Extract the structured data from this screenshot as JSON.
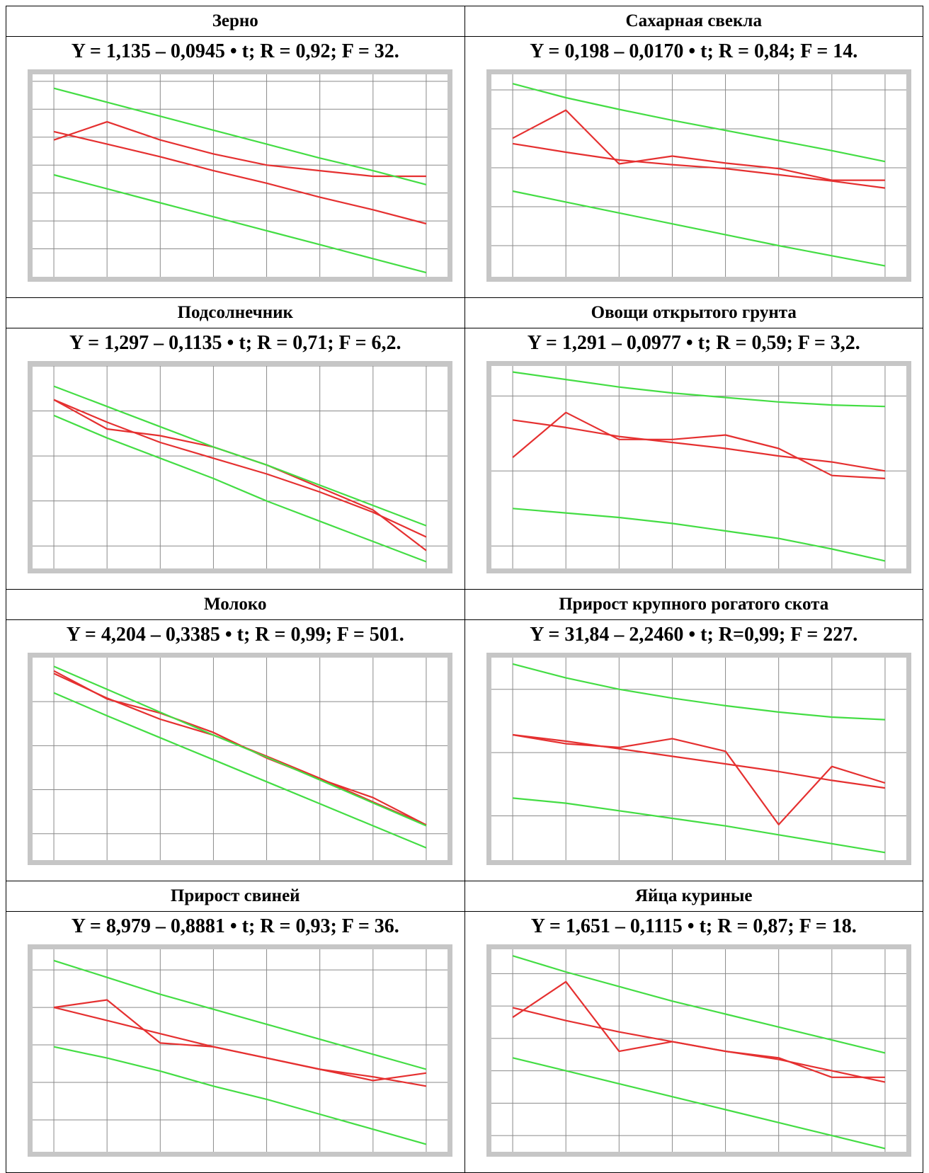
{
  "panels": [
    {
      "title": "Зерно",
      "equation": "Y = 1,135 – 0,0945 • t; R = 0,92; F = 32.",
      "chart_data": {
        "type": "line",
        "x": [
          1,
          2,
          3,
          4,
          5,
          6,
          7,
          8
        ],
        "series": [
          {
            "values": [
              0.98,
              1.11,
              0.98,
              0.88,
              0.8,
              0.76,
              0.72,
              0.72
            ],
            "color": "#e53030"
          },
          {
            "values": [
              1.04,
              0.95,
              0.86,
              0.76,
              0.67,
              0.57,
              0.48,
              0.38
            ],
            "color": "#e53030"
          },
          {
            "values": [
              1.35,
              1.25,
              1.15,
              1.05,
              0.95,
              0.85,
              0.76,
              0.66
            ],
            "color": "#44dd44"
          },
          {
            "values": [
              0.73,
              0.63,
              0.53,
              0.43,
              0.33,
              0.23,
              0.13,
              0.03
            ],
            "color": "#44dd44"
          }
        ],
        "xlim": [
          0.6,
          8.4
        ],
        "ylim": [
          0.0,
          1.45
        ],
        "xticks": [
          1,
          2,
          3,
          4,
          5,
          6,
          7,
          8
        ],
        "yticks": [
          0.2,
          0.4,
          0.6,
          0.8,
          1.0,
          1.2,
          1.4
        ]
      }
    },
    {
      "title": "Сахарная свекла",
      "equation": "Y = 0,198 – 0,0170 • t; R = 0,84; F = 14.",
      "chart_data": {
        "type": "line",
        "x": [
          1,
          2,
          3,
          4,
          5,
          6,
          7,
          8
        ],
        "series": [
          {
            "values": [
              0.188,
              0.224,
              0.155,
              0.165,
              0.156,
              0.149,
              0.134,
              0.134
            ],
            "color": "#e53030"
          },
          {
            "values": [
              0.181,
              0.17,
              0.16,
              0.154,
              0.149,
              0.141,
              0.133,
              0.124
            ],
            "color": "#e53030"
          },
          {
            "values": [
              0.258,
              0.24,
              0.225,
              0.211,
              0.198,
              0.185,
              0.172,
              0.158
            ],
            "color": "#44dd44"
          },
          {
            "values": [
              0.12,
              0.106,
              0.092,
              0.078,
              0.064,
              0.05,
              0.037,
              0.024
            ],
            "color": "#44dd44"
          }
        ],
        "xlim": [
          0.6,
          8.4
        ],
        "ylim": [
          0.01,
          0.27
        ],
        "xticks": [
          1,
          2,
          3,
          4,
          5,
          6,
          7,
          8
        ],
        "yticks": [
          0.05,
          0.1,
          0.15,
          0.2,
          0.25
        ]
      }
    },
    {
      "title": "Подсолнечник",
      "equation": "Y = 1,297 – 0,1135 • t; R = 0,71; F = 6,2.",
      "chart_data": {
        "type": "line",
        "x": [
          1,
          2,
          3,
          4,
          5,
          6,
          7,
          8
        ],
        "series": [
          {
            "values": [
              1.25,
              1.12,
              1.09,
              1.04,
              0.96,
              0.86,
              0.76,
              0.58
            ],
            "color": "#e53030"
          },
          {
            "values": [
              1.25,
              1.15,
              1.06,
              0.99,
              0.92,
              0.84,
              0.75,
              0.64
            ],
            "color": "#e53030"
          },
          {
            "values": [
              1.31,
              1.22,
              1.13,
              1.04,
              0.96,
              0.87,
              0.78,
              0.69
            ],
            "color": "#44dd44"
          },
          {
            "values": [
              1.18,
              1.08,
              0.99,
              0.9,
              0.8,
              0.71,
              0.62,
              0.53
            ],
            "color": "#44dd44"
          }
        ],
        "xlim": [
          0.6,
          8.4
        ],
        "ylim": [
          0.5,
          1.4
        ],
        "xticks": [
          1,
          2,
          3,
          4,
          5,
          6,
          7,
          8
        ],
        "yticks": [
          0.6,
          0.8,
          1.0,
          1.2,
          1.4
        ]
      }
    },
    {
      "title": "Овощи открытого грунта",
      "equation": "Y = 1,291 – 0,0977 • t; R = 0,59; F = 3,2.",
      "chart_data": {
        "type": "line",
        "x": [
          1,
          2,
          3,
          4,
          5,
          6,
          7,
          8
        ],
        "series": [
          {
            "values": [
              1.09,
              1.39,
              1.21,
              1.21,
              1.24,
              1.15,
              0.97,
              0.95
            ],
            "color": "#e53030"
          },
          {
            "values": [
              1.34,
              1.29,
              1.23,
              1.19,
              1.15,
              1.1,
              1.06,
              1.0
            ],
            "color": "#e53030"
          },
          {
            "values": [
              1.66,
              1.61,
              1.56,
              1.52,
              1.49,
              1.46,
              1.44,
              1.43
            ],
            "color": "#44dd44"
          },
          {
            "values": [
              0.75,
              0.72,
              0.69,
              0.65,
              0.6,
              0.55,
              0.48,
              0.4
            ],
            "color": "#44dd44"
          }
        ],
        "xlim": [
          0.6,
          8.4
        ],
        "ylim": [
          0.35,
          1.7
        ],
        "xticks": [
          1,
          2,
          3,
          4,
          5,
          6,
          7,
          8
        ],
        "yticks": [
          0.5,
          1.0,
          1.5
        ]
      }
    },
    {
      "title": "Молоко",
      "equation": "Y = 4,204 – 0,3385 • t; R = 0,99; F = 501.",
      "chart_data": {
        "type": "line",
        "x": [
          1,
          2,
          3,
          4,
          5,
          6,
          7,
          8
        ],
        "series": [
          {
            "values": [
              3.85,
              3.53,
              3.37,
              3.15,
              2.86,
              2.62,
              2.41,
              2.1
            ],
            "color": "#e53030"
          },
          {
            "values": [
              3.82,
              3.54,
              3.3,
              3.12,
              2.88,
              2.63,
              2.36,
              2.1
            ],
            "color": "#e53030"
          },
          {
            "values": [
              3.9,
              3.64,
              3.38,
              3.12,
              2.87,
              2.61,
              2.35,
              2.09
            ],
            "color": "#44dd44"
          },
          {
            "values": [
              3.6,
              3.34,
              3.09,
              2.84,
              2.59,
              2.34,
              2.09,
              1.84
            ],
            "color": "#44dd44"
          }
        ],
        "xlim": [
          0.6,
          8.4
        ],
        "ylim": [
          1.7,
          4.0
        ],
        "xticks": [
          1,
          2,
          3,
          4,
          5,
          6,
          7,
          8
        ],
        "yticks": [
          2.0,
          2.5,
          3.0,
          3.5
        ]
      }
    },
    {
      "title": "Прирост крупного рогатого скота",
      "equation": "Y = 31,84 – 2,2460 • t; R=0,99; F = 227.",
      "chart_data": {
        "type": "line",
        "x": [
          1,
          2,
          3,
          4,
          5,
          6,
          7,
          8
        ],
        "series": [
          {
            "values": [
              31.4,
              30.7,
              30.4,
              31.1,
              30.1,
              24.3,
              28.9,
              27.6
            ],
            "color": "#e53030"
          },
          {
            "values": [
              31.4,
              30.9,
              30.3,
              29.7,
              29.1,
              28.5,
              27.8,
              27.2
            ],
            "color": "#e53030"
          },
          {
            "values": [
              37.0,
              35.9,
              35.0,
              34.3,
              33.7,
              33.2,
              32.8,
              32.6
            ],
            "color": "#44dd44"
          },
          {
            "values": [
              26.4,
              26.0,
              25.4,
              24.8,
              24.2,
              23.5,
              22.8,
              22.1
            ],
            "color": "#44dd44"
          }
        ],
        "xlim": [
          0.6,
          8.4
        ],
        "ylim": [
          21.5,
          37.5
        ],
        "xticks": [
          1,
          2,
          3,
          4,
          5,
          6,
          7,
          8
        ],
        "yticks": [
          25,
          30,
          35
        ]
      }
    },
    {
      "title": "Прирост свиней",
      "equation": "Y = 8,979 – 0,8881 • t; R = 0,93; F = 36.",
      "chart_data": {
        "type": "line",
        "x": [
          1,
          2,
          3,
          4,
          5,
          6,
          7,
          8
        ],
        "series": [
          {
            "values": [
              8.0,
              8.4,
              6.1,
              5.9,
              5.3,
              4.7,
              4.1,
              4.5
            ],
            "color": "#e53030"
          },
          {
            "values": [
              8.0,
              7.3,
              6.6,
              5.9,
              5.3,
              4.7,
              4.3,
              3.8
            ],
            "color": "#e53030"
          },
          {
            "values": [
              10.5,
              9.6,
              8.7,
              7.9,
              7.1,
              6.3,
              5.5,
              4.7
            ],
            "color": "#44dd44"
          },
          {
            "values": [
              5.9,
              5.3,
              4.6,
              3.8,
              3.1,
              2.3,
              1.5,
              0.7
            ],
            "color": "#44dd44"
          }
        ],
        "xlim": [
          0.6,
          8.4
        ],
        "ylim": [
          0.3,
          11.1
        ],
        "xticks": [
          1,
          2,
          3,
          4,
          5,
          6,
          7,
          8
        ],
        "yticks": [
          2,
          4,
          6,
          8,
          10
        ]
      }
    },
    {
      "title": "Яйца куриные",
      "equation": "Y = 1,651 – 0,1115 • t;  R = 0,87; F = 18.",
      "chart_data": {
        "type": "line",
        "x": [
          1,
          2,
          3,
          4,
          5,
          6,
          7,
          8
        ],
        "series": [
          {
            "values": [
              1.53,
              1.75,
              1.32,
              1.38,
              1.32,
              1.28,
              1.16,
              1.16
            ],
            "color": "#e53030"
          },
          {
            "values": [
              1.59,
              1.51,
              1.44,
              1.38,
              1.32,
              1.27,
              1.2,
              1.13
            ],
            "color": "#e53030"
          },
          {
            "values": [
              1.91,
              1.81,
              1.72,
              1.63,
              1.55,
              1.47,
              1.39,
              1.31
            ],
            "color": "#44dd44"
          },
          {
            "values": [
              1.28,
              1.2,
              1.12,
              1.04,
              0.96,
              0.88,
              0.8,
              0.72
            ],
            "color": "#44dd44"
          }
        ],
        "xlim": [
          0.6,
          8.4
        ],
        "ylim": [
          0.7,
          1.95
        ],
        "xticks": [
          1,
          2,
          3,
          4,
          5,
          6,
          7,
          8
        ],
        "yticks": [
          0.8,
          1.0,
          1.2,
          1.4,
          1.6,
          1.8
        ]
      }
    }
  ]
}
